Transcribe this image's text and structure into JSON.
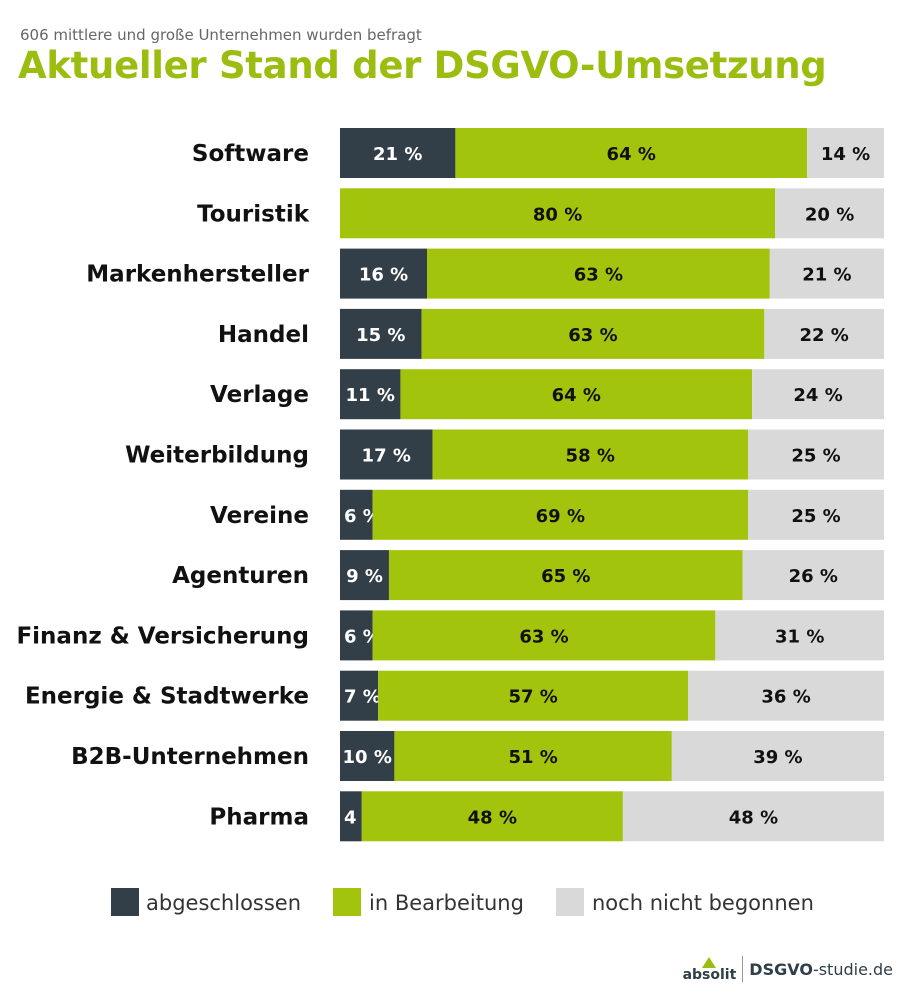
{
  "subtitle": "606 mittlere und große Unternehmen wurden befragt",
  "title": "Aktueller Stand der DSGVO-Umsetzung",
  "colors": {
    "abgeschlossen": "#333f48",
    "in_bearbeitung": "#a2c40c",
    "noch_nicht_begonnen": "#d9d9d9",
    "title": "#9bbd0f"
  },
  "chart_data": {
    "type": "bar",
    "orientation": "horizontal",
    "stacked": true,
    "title": "Aktueller Stand der DSGVO-Umsetzung",
    "categories": [
      "Software",
      "Touristik",
      "Markenhersteller",
      "Handel",
      "Verlage",
      "Weiterbildung",
      "Vereine",
      "Agenturen",
      "Finanz & Versicherung",
      "Energie & Stadtwerke",
      "B2B-Unternehmen",
      "Pharma"
    ],
    "series": [
      {
        "name": "abgeschlossen",
        "values": [
          21,
          0,
          16,
          15,
          11,
          17,
          6,
          9,
          6,
          7,
          10,
          4
        ]
      },
      {
        "name": "in Bearbeitung",
        "values": [
          64,
          80,
          63,
          63,
          64,
          58,
          69,
          65,
          63,
          57,
          51,
          48
        ]
      },
      {
        "name": "noch nicht begonnen",
        "values": [
          14,
          20,
          21,
          22,
          24,
          25,
          25,
          26,
          31,
          36,
          39,
          48
        ]
      }
    ],
    "unit": " %",
    "legend": "bottom"
  },
  "footer": {
    "logo_text": "absolit",
    "site_bold": "DSGVO",
    "site_rest": "-studie.de"
  }
}
